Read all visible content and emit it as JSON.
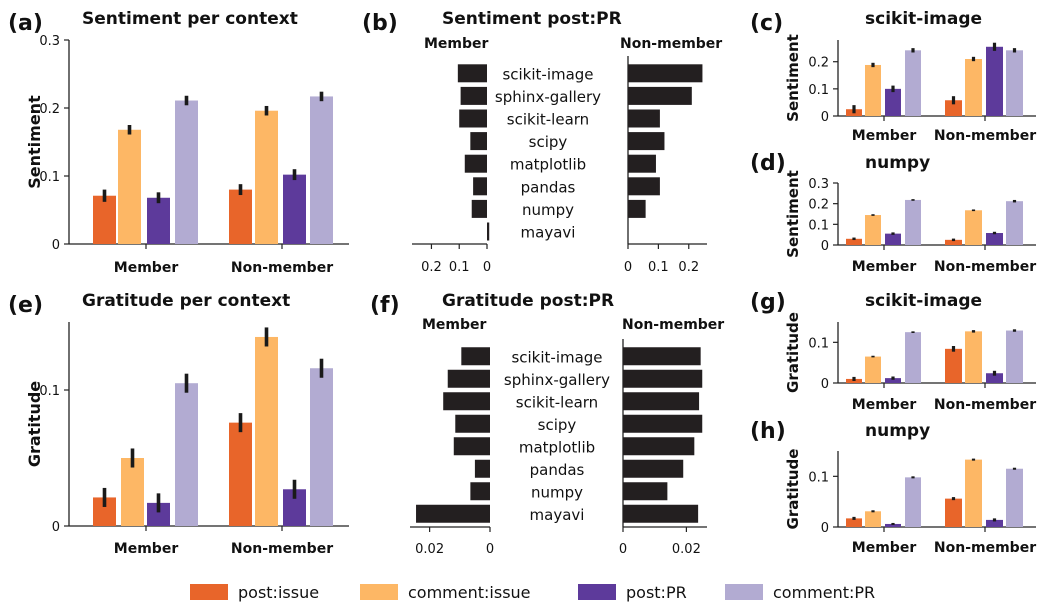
{
  "colors": {
    "post:issue": "#e8652a",
    "comment:issue": "#fdb765",
    "post:PR": "#5d3a9b",
    "comment:PR": "#b2abd2",
    "bar_dark": "#231f20",
    "error": "#1a1a1a"
  },
  "legend": [
    {
      "label": "post:issue",
      "key": "post:issue"
    },
    {
      "label": "comment:issue",
      "key": "comment:issue"
    },
    {
      "label": "post:PR",
      "key": "post:PR"
    },
    {
      "label": "comment:PR",
      "key": "comment:PR"
    }
  ],
  "chart_data": [
    {
      "panel": "(a)",
      "type": "bar",
      "title": "Sentiment per context",
      "ylabel": "Sentiment",
      "ylim": [
        0,
        0.3
      ],
      "yticks": [
        "0",
        "0.1",
        "0.2",
        "0.3"
      ],
      "categories": [
        "Member",
        "Non-member"
      ],
      "series": [
        {
          "name": "post:issue",
          "values": [
            0.071,
            0.08
          ],
          "err": [
            0.009,
            0.008
          ]
        },
        {
          "name": "comment:issue",
          "values": [
            0.168,
            0.196
          ],
          "err": [
            0.007,
            0.007
          ]
        },
        {
          "name": "post:PR",
          "values": [
            0.068,
            0.102
          ],
          "err": [
            0.008,
            0.008
          ]
        },
        {
          "name": "comment:PR",
          "values": [
            0.211,
            0.217
          ],
          "err": [
            0.007,
            0.007
          ]
        }
      ]
    },
    {
      "panel": "(b)",
      "type": "bar",
      "title": "Sentiment post:PR",
      "left_label": "Member",
      "right_label": "Non-member",
      "categories": [
        "scikit-image",
        "sphinx-gallery",
        "scikit-learn",
        "scipy",
        "matplotlib",
        "pandas",
        "numpy",
        "mayavi"
      ],
      "member": [
        0.105,
        0.095,
        0.1,
        0.06,
        0.08,
        0.05,
        0.055,
        -0.008
      ],
      "nonmember": [
        0.245,
        0.21,
        0.105,
        0.12,
        0.092,
        0.105,
        0.058,
        0.0
      ],
      "left_ticks": [
        "0.2",
        "0.1",
        "0"
      ],
      "right_ticks": [
        "0",
        "0.1",
        "0.2"
      ]
    },
    {
      "panel": "(c)",
      "type": "bar",
      "title": "scikit-image",
      "ylabel": "Sentiment",
      "ylim": [
        0,
        0.28
      ],
      "yticks": [
        "0",
        "0.1",
        "0.2"
      ],
      "categories": [
        "Member",
        "Non-member"
      ],
      "series": [
        {
          "name": "post:issue",
          "values": [
            0.025,
            0.058
          ],
          "err": [
            0.015,
            0.015
          ]
        },
        {
          "name": "comment:issue",
          "values": [
            0.188,
            0.21
          ],
          "err": [
            0.008,
            0.008
          ]
        },
        {
          "name": "post:PR",
          "values": [
            0.1,
            0.255
          ],
          "err": [
            0.012,
            0.015
          ]
        },
        {
          "name": "comment:PR",
          "values": [
            0.242,
            0.242
          ],
          "err": [
            0.008,
            0.008
          ]
        }
      ]
    },
    {
      "panel": "(d)",
      "type": "bar",
      "title": "numpy",
      "ylabel": "Sentiment",
      "ylim": [
        0,
        0.3
      ],
      "yticks": [
        "0",
        "0.1",
        "0.2",
        "0.3"
      ],
      "categories": [
        "Member",
        "Non-member"
      ],
      "series": [
        {
          "name": "post:issue",
          "values": [
            0.03,
            0.025
          ],
          "err": [
            0.006,
            0.006
          ]
        },
        {
          "name": "comment:issue",
          "values": [
            0.145,
            0.168
          ],
          "err": [
            0.004,
            0.004
          ]
        },
        {
          "name": "post:PR",
          "values": [
            0.055,
            0.058
          ],
          "err": [
            0.006,
            0.006
          ]
        },
        {
          "name": "comment:PR",
          "values": [
            0.218,
            0.212
          ],
          "err": [
            0.004,
            0.006
          ]
        }
      ]
    },
    {
      "panel": "(e)",
      "type": "bar",
      "title": "Gratitude per context",
      "ylabel": "Gratitude",
      "ylim": [
        0,
        0.15
      ],
      "yticks": [
        "0",
        "0.1"
      ],
      "categories": [
        "Member",
        "Non-member"
      ],
      "series": [
        {
          "name": "post:issue",
          "values": [
            0.021,
            0.076
          ],
          "err": [
            0.007,
            0.007
          ]
        },
        {
          "name": "comment:issue",
          "values": [
            0.05,
            0.139
          ],
          "err": [
            0.007,
            0.007
          ]
        },
        {
          "name": "post:PR",
          "values": [
            0.017,
            0.027
          ],
          "err": [
            0.007,
            0.007
          ]
        },
        {
          "name": "comment:PR",
          "values": [
            0.105,
            0.116
          ],
          "err": [
            0.007,
            0.007
          ]
        }
      ]
    },
    {
      "panel": "(f)",
      "type": "bar",
      "title": "Gratitude post:PR",
      "left_label": "Member",
      "right_label": "Non-member",
      "categories": [
        "scikit-image",
        "sphinx-gallery",
        "scikit-learn",
        "scipy",
        "matplotlib",
        "pandas",
        "numpy",
        "mayavi"
      ],
      "member": [
        0.0095,
        0.014,
        0.0155,
        0.0115,
        0.012,
        0.005,
        0.0065,
        0.0245
      ],
      "nonmember": [
        0.0245,
        0.025,
        0.024,
        0.025,
        0.0225,
        0.019,
        0.014,
        0.0237
      ],
      "left_ticks": [
        "0.02",
        "0"
      ],
      "right_ticks": [
        "0",
        "0.02"
      ]
    },
    {
      "panel": "(g)",
      "type": "bar",
      "title": "scikit-image",
      "ylabel": "Gratitude",
      "ylim": [
        0,
        0.15
      ],
      "yticks": [
        "0",
        "0.1"
      ],
      "categories": [
        "Member",
        "Non-member"
      ],
      "series": [
        {
          "name": "post:issue",
          "values": [
            0.01,
            0.084
          ],
          "err": [
            0.005,
            0.007
          ]
        },
        {
          "name": "comment:issue",
          "values": [
            0.065,
            0.127
          ],
          "err": [
            0.002,
            0.003
          ]
        },
        {
          "name": "post:PR",
          "values": [
            0.012,
            0.024
          ],
          "err": [
            0.004,
            0.006
          ]
        },
        {
          "name": "comment:PR",
          "values": [
            0.125,
            0.129
          ],
          "err": [
            0.002,
            0.003
          ]
        }
      ]
    },
    {
      "panel": "(h)",
      "type": "bar",
      "title": "numpy",
      "ylabel": "Gratitude",
      "ylim": [
        0,
        0.15
      ],
      "yticks": [
        "0",
        "0.1"
      ],
      "categories": [
        "Member",
        "Non-member"
      ],
      "series": [
        {
          "name": "post:issue",
          "values": [
            0.017,
            0.056
          ],
          "err": [
            0.003,
            0.003
          ]
        },
        {
          "name": "comment:issue",
          "values": [
            0.031,
            0.133
          ],
          "err": [
            0.002,
            0.002
          ]
        },
        {
          "name": "post:PR",
          "values": [
            0.006,
            0.014
          ],
          "err": [
            0.002,
            0.003
          ]
        },
        {
          "name": "comment:PR",
          "values": [
            0.098,
            0.115
          ],
          "err": [
            0.002,
            0.002
          ]
        }
      ]
    }
  ]
}
